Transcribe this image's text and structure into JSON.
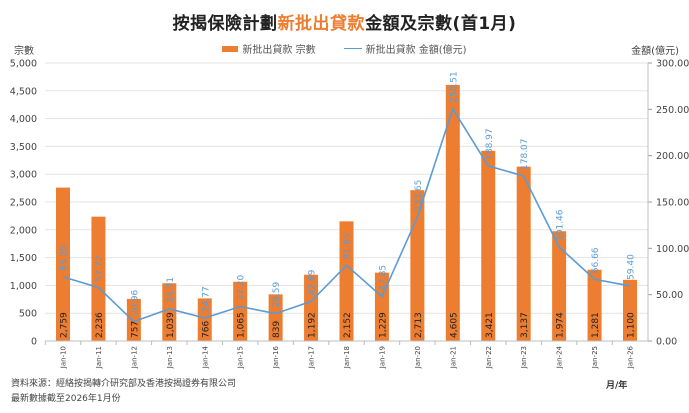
{
  "chart_data": {
    "type": "bar+line",
    "title": "按揭保險計劃新批出貸款金額及宗數(首1月)",
    "title_parts": [
      "按揭保險計劃",
      "新批出貸款",
      "金額及宗數(首1月)"
    ],
    "categories": [
      "Jan-10",
      "Jan-11",
      "Jan-12",
      "Jan-13",
      "Jan-14",
      "Jan-15",
      "Jan-16",
      "Jan-17",
      "Jan-18",
      "Jan-19",
      "Jan-20",
      "Jan-21",
      "Jan-22",
      "Jan-23",
      "Jan-24",
      "Jan-25",
      "Jan-26"
    ],
    "series": [
      {
        "name": "新批出貸款 宗數",
        "type": "bar",
        "axis": "left",
        "color": "#ed7d31",
        "values": [
          2759,
          2236,
          757,
          1039,
          766,
          1065,
          839,
          1192,
          2152,
          1229,
          2713,
          4605,
          3421,
          3137,
          1974,
          1281,
          1100
        ],
        "labels": [
          "2,759",
          "2,236",
          "757",
          "1,039",
          "766",
          "1,065",
          "839",
          "1,192",
          "2,152",
          "1,229",
          "2,713",
          "4,605",
          "3,421",
          "3,137",
          "1,974",
          "1,281",
          "1,100"
        ]
      },
      {
        "name": "新批出貸款 金額(億元)",
        "type": "line",
        "axis": "right",
        "color": "#5b9bd5",
        "values": [
          69.2,
          57.72,
          20.96,
          34.71,
          24.77,
          37.2,
          29.59,
          42.69,
          81.65,
          47.85,
          133.65,
          250.51,
          188.97,
          178.07,
          101.46,
          66.66,
          59.4
        ],
        "labels": [
          "69.20",
          "57.72",
          "20.96",
          "34.71",
          "24.77",
          "37.20",
          "29.59",
          "42.69",
          "81.65",
          "47.85",
          "133.65",
          "250.51",
          "188.97",
          "178.07",
          "101.46",
          "66.66",
          "59.40"
        ]
      }
    ],
    "y_left": {
      "label": "宗數",
      "range": [
        0,
        5000
      ],
      "ticks": [
        "0",
        "500",
        "1,000",
        "1,500",
        "2,000",
        "2,500",
        "3,000",
        "3,500",
        "4,000",
        "4,500",
        "5,000"
      ]
    },
    "y_right": {
      "label": "金額(億元)",
      "range": [
        0,
        300
      ],
      "ticks": [
        "0.00",
        "50.00",
        "100.00",
        "150.00",
        "200.00",
        "250.00",
        "300.00"
      ]
    },
    "xlabel": "月/年",
    "grid": true,
    "legend_position": "top-center"
  },
  "legend": {
    "bar_label": "新批出貸款 宗數",
    "line_label": "新批出貸款 金額(億元)"
  },
  "footer": {
    "source": "資料來源：經絡按揭轉介研究部及香港按揭證券有限公司",
    "updated": "最新數據截至2026年1月份"
  }
}
